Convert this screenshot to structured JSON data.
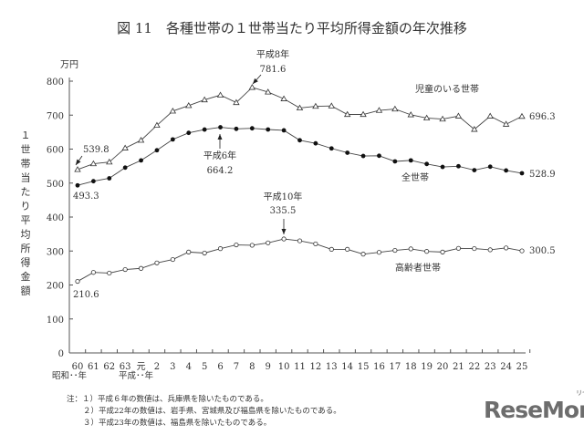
{
  "chart_data": {
    "type": "line",
    "title": "図 11　各種世帯の１世帯当たり平均所得金額の年次推移",
    "ylabel": "１世帯当たり平均所得金額",
    "yunit": "万円",
    "ylim": [
      0,
      800
    ],
    "yticks": [
      0,
      100,
      200,
      300,
      400,
      500,
      600,
      700,
      800
    ],
    "grid": false,
    "categories": [
      "60",
      "61",
      "62",
      "63",
      "元",
      "2",
      "3",
      "4",
      "5",
      "6",
      "7",
      "8",
      "9",
      "10",
      "11",
      "12",
      "13",
      "14",
      "15",
      "16",
      "17",
      "18",
      "19",
      "20",
      "21",
      "22",
      "23",
      "24",
      "25"
    ],
    "era_labels": {
      "showa": "昭和･･年",
      "heisei": "平成･･年"
    },
    "series": [
      {
        "name": "児童のいる世帯",
        "marker": "triangle",
        "values": [
          539.8,
          557,
          562,
          603,
          626,
          670,
          712,
          728,
          745,
          759,
          737,
          781.6,
          768,
          748,
          721,
          726,
          727,
          702,
          702,
          714,
          718,
          701,
          691.4,
          688.5,
          697.3,
          658.1,
          697.0,
          673.2,
          696.3
        ]
      },
      {
        "name": "全世帯",
        "marker": "filled-circle",
        "values": [
          493.3,
          505.6,
          514.1,
          545.5,
          566.7,
          596.6,
          628.5,
          647.8,
          657.5,
          664.2,
          659.6,
          661.2,
          657.7,
          655.2,
          626.0,
          616.9,
          602.0,
          589.3,
          579.7,
          580.4,
          563.8,
          566.8,
          556.2,
          547.5,
          549.6,
          538.0,
          548.2,
          537.2,
          528.9
        ]
      },
      {
        "name": "高齢者世帯",
        "marker": "open-circle",
        "values": [
          210.6,
          237,
          235,
          245.5,
          249,
          265,
          275,
          297,
          294,
          307,
          318,
          317,
          324,
          335.5,
          330,
          321,
          305,
          305,
          290.9,
          296.1,
          301.9,
          306.3,
          298.9,
          297.0,
          307.9,
          307.2,
          303.6,
          309.1,
          300.5
        ]
      }
    ],
    "annotations": [
      {
        "text": "539.8"
      },
      {
        "text": "493.3"
      },
      {
        "text": "210.6"
      },
      {
        "line1": "平成8年",
        "line2": "781.6"
      },
      {
        "line1": "平成6年",
        "line2": "664.2"
      },
      {
        "line1": "平成10年",
        "line2": "335.5"
      },
      {
        "text": "696.3"
      },
      {
        "text": "528.9"
      },
      {
        "text": "300.5"
      }
    ]
  },
  "notes": [
    "注：１）平成６年の数値は、兵庫県を除いたものである。",
    "２）平成22年の数値は、岩手県、宮城県及び福島県を除いたものである。",
    "３）平成23年の数値は、福島県を除いたものである。"
  ],
  "logo": {
    "text": "ReseMom",
    "sub": "リセマム"
  }
}
